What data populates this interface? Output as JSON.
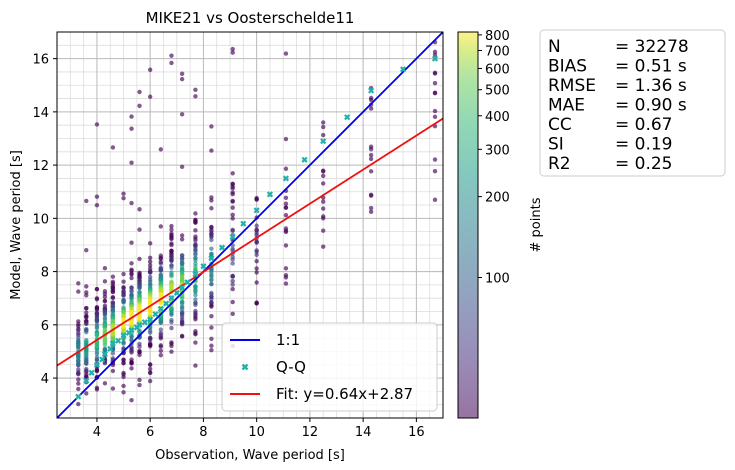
{
  "chart_data": {
    "type": "scatter",
    "title": "MIKE21 vs Oosterschelde11",
    "xlabel": "Observation, Wave period [s]",
    "ylabel": "Model, Wave period [s]",
    "xlim": [
      2.5,
      17
    ],
    "ylim": [
      2.5,
      17
    ],
    "xticks": [
      4,
      6,
      8,
      10,
      12,
      14,
      16
    ],
    "yticks": [
      4,
      6,
      8,
      10,
      12,
      14,
      16
    ],
    "grid": true,
    "obs_levels": [
      3.3,
      3.6,
      4.0,
      4.3,
      4.6,
      5.0,
      5.3,
      5.6,
      6.0,
      6.4,
      6.8,
      7.2,
      7.7,
      8.3,
      9.1,
      10.0,
      11.1,
      12.5,
      14.3,
      16.7
    ],
    "one_to_one": {
      "x": [
        2.5,
        17
      ],
      "y": [
        2.5,
        17
      ]
    },
    "fit": {
      "slope": 0.64,
      "intercept": 2.87
    },
    "qq": {
      "x": [
        3.3,
        3.6,
        3.8,
        4.0,
        4.2,
        4.3,
        4.5,
        4.6,
        4.8,
        5.0,
        5.2,
        5.3,
        5.5,
        5.6,
        5.8,
        6.0,
        6.2,
        6.4,
        6.6,
        6.8,
        7.0,
        7.2,
        7.4,
        7.7,
        8.0,
        8.3,
        8.7,
        9.1,
        9.5,
        10.0,
        10.5,
        11.1,
        11.8,
        12.5,
        13.4,
        14.3,
        15.5,
        16.7
      ],
      "y": [
        3.3,
        3.9,
        4.2,
        4.5,
        4.7,
        4.9,
        5.1,
        5.3,
        5.4,
        5.6,
        5.7,
        5.8,
        5.9,
        6.0,
        6.1,
        6.2,
        6.4,
        6.6,
        6.8,
        7.0,
        7.2,
        7.4,
        7.6,
        7.9,
        8.2,
        8.5,
        8.9,
        9.3,
        9.8,
        10.3,
        10.9,
        11.5,
        12.2,
        12.9,
        13.8,
        14.8,
        15.6,
        16.0
      ]
    },
    "legend": {
      "placement": "lower-right",
      "entries": [
        "1:1",
        "Q-Q",
        "Fit: y=0.64x+2.87"
      ]
    },
    "colorbar": {
      "label": "# points",
      "scale": "log",
      "range": [
        30,
        820
      ],
      "ticks": [
        100,
        200,
        300,
        400,
        500,
        600,
        700,
        800
      ]
    },
    "stats": [
      {
        "name": "N",
        "value": "= 32278"
      },
      {
        "name": "BIAS",
        "value": "= 0.51 s"
      },
      {
        "name": "RMSE",
        "value": "= 1.36 s"
      },
      {
        "name": "MAE",
        "value": "= 0.90 s"
      },
      {
        "name": "CC",
        "value": "= 0.67"
      },
      {
        "name": "SI",
        "value": "= 0.19"
      },
      {
        "name": "R2",
        "value": "= 0.25"
      }
    ],
    "colors": {
      "one_to_one": "#0000ee",
      "fit": "#ee1111",
      "qq": "#20b2aa"
    }
  }
}
